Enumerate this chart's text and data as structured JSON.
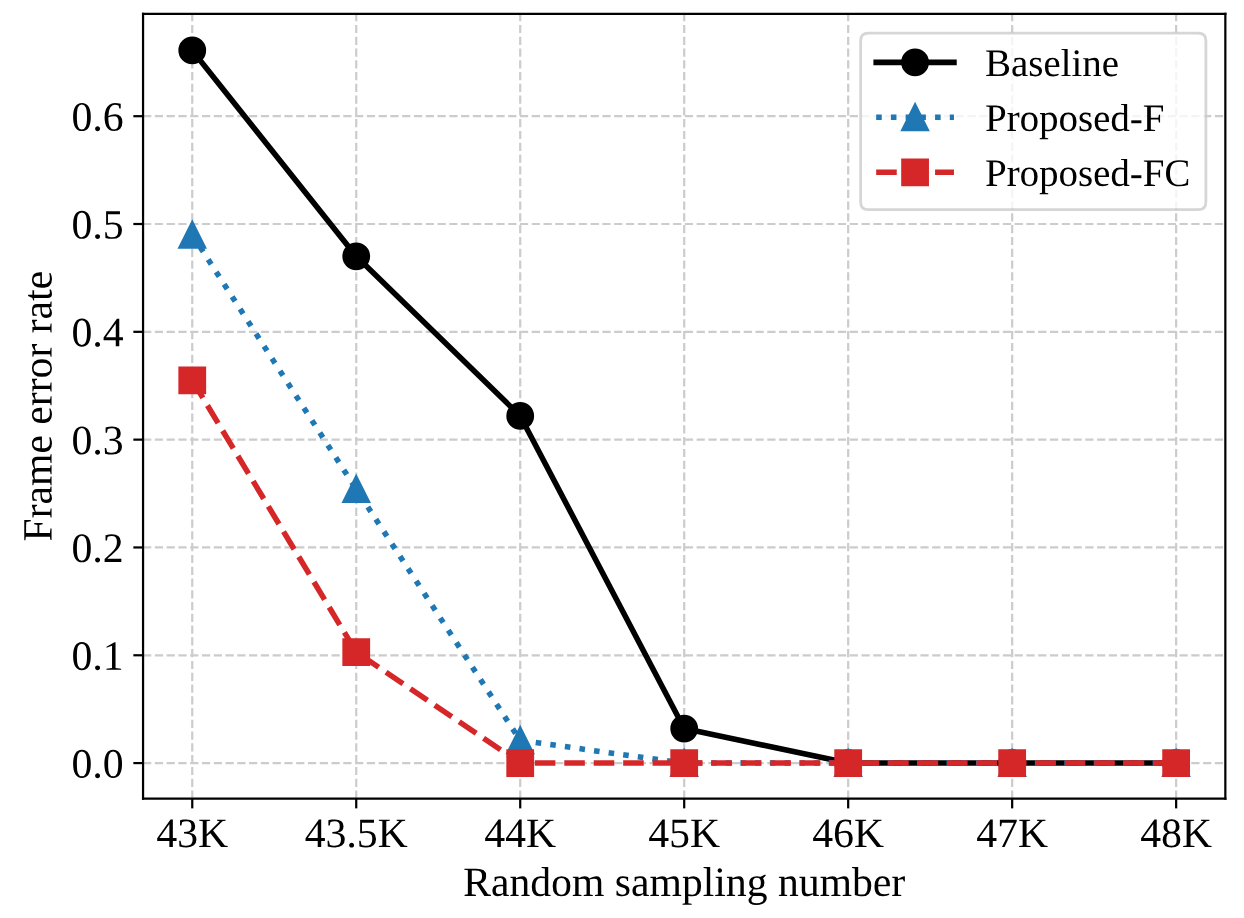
{
  "chart_data": {
    "type": "line",
    "xlabel": "Random sampling number",
    "ylabel": "Frame error rate",
    "categories": [
      "43K",
      "43.5K",
      "44K",
      "45K",
      "46K",
      "47K",
      "48K"
    ],
    "series": [
      {
        "name": "Baseline",
        "color": "#000000",
        "marker": "circle",
        "line_style": "solid",
        "values": [
          0.661,
          0.47,
          0.322,
          0.032,
          0,
          0,
          0
        ]
      },
      {
        "name": "Proposed-F",
        "color": "#1f77b4",
        "marker": "triangle",
        "line_style": "dotted",
        "values": [
          0.49,
          0.254,
          0.021,
          0,
          0,
          0,
          0
        ]
      },
      {
        "name": "Proposed-FC",
        "color": "#d62728",
        "marker": "square",
        "line_style": "dashed",
        "values": [
          0.355,
          0.103,
          0,
          0,
          0,
          0,
          0
        ]
      }
    ],
    "ylim": [
      -0.033,
      0.695
    ],
    "yticks": [
      {
        "value": 0,
        "label": "0.0"
      },
      0.1,
      0.2,
      0.3,
      0.4,
      0.5,
      0.6
    ],
    "grid": true,
    "legend": "top right"
  }
}
